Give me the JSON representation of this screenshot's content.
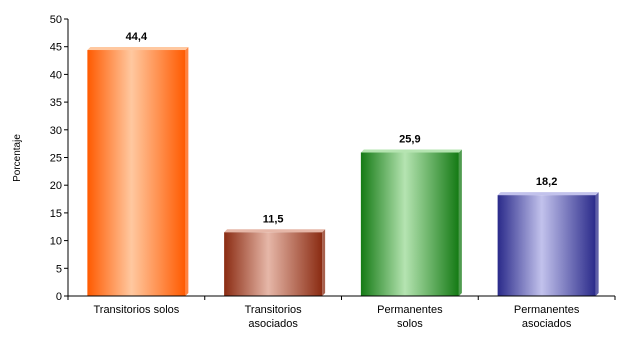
{
  "chart_data": {
    "type": "bar",
    "title": "",
    "xlabel": "",
    "ylabel": "Porcentaje",
    "ylim": [
      0,
      50
    ],
    "yticks": [
      0,
      5,
      10,
      15,
      20,
      25,
      30,
      35,
      40,
      45,
      50
    ],
    "grid": false,
    "categories": [
      [
        "Transitorios solos"
      ],
      [
        "Transitorios",
        "asociados"
      ],
      [
        "Permanentes",
        "solos"
      ],
      [
        "Permanentes",
        "asociados"
      ]
    ],
    "values": [
      44.4,
      11.5,
      25.9,
      18.2
    ],
    "data_labels": [
      "44,4",
      "11,5",
      "25,9",
      "18,2"
    ],
    "colors": [
      {
        "dark": "#ff5a00",
        "light": "#ffc8a0"
      },
      {
        "dark": "#8a2b12",
        "light": "#e6b7a8"
      },
      {
        "dark": "#147a14",
        "light": "#b5e4b1"
      },
      {
        "dark": "#2a2a8a",
        "light": "#c2c2ec"
      }
    ]
  }
}
